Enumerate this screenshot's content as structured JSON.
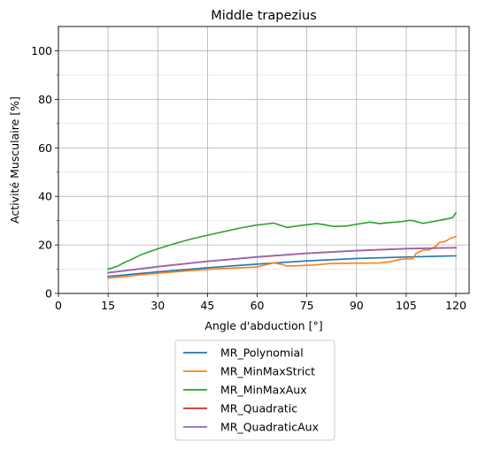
{
  "chart_data": {
    "type": "line",
    "title": "Middle trapezius",
    "xlabel": "Angle d'abduction [°]",
    "ylabel": "Activité Musculaire [%]",
    "xlim": [
      0,
      124
    ],
    "ylim": [
      0,
      110
    ],
    "xticks": [
      0,
      15,
      30,
      45,
      60,
      75,
      90,
      105,
      120
    ],
    "yticks": [
      0,
      20,
      40,
      60,
      80,
      100
    ],
    "yminor_ticks": [
      10,
      30,
      50,
      70,
      90
    ],
    "grid": true,
    "legend_position": "below",
    "series": [
      {
        "name": "MR_Polynomial",
        "color": "#1f77b4",
        "x": [
          15,
          30,
          45,
          60,
          75,
          90,
          105,
          120
        ],
        "y": [
          7.0,
          8.9,
          10.6,
          12.1,
          13.4,
          14.4,
          15.0,
          15.5
        ]
      },
      {
        "name": "MR_MinMaxStrict",
        "color": "#ff7f0e",
        "x": [
          15,
          20,
          25,
          30,
          35,
          40,
          45,
          50,
          55,
          60,
          62,
          65,
          67,
          69,
          72,
          75,
          78,
          82,
          86,
          90,
          93,
          97,
          100,
          103,
          105,
          107,
          108,
          110,
          112,
          114,
          115,
          117,
          118,
          120
        ],
        "y": [
          6.3,
          7.0,
          7.7,
          8.3,
          8.9,
          9.4,
          9.9,
          10.3,
          10.6,
          10.9,
          11.6,
          12.6,
          12.1,
          11.3,
          11.4,
          11.6,
          11.8,
          12.3,
          12.4,
          12.5,
          12.5,
          12.6,
          13.0,
          14.0,
          14.2,
          14.3,
          16.5,
          17.8,
          18.0,
          19.5,
          21.0,
          21.5,
          22.5,
          23.5
        ]
      },
      {
        "name": "MR_MinMaxAux",
        "color": "#2ca02c",
        "x": [
          15,
          16,
          18,
          20,
          22,
          25,
          30,
          35,
          40,
          45,
          50,
          55,
          60,
          62,
          65,
          67,
          69,
          72,
          75,
          78,
          80,
          83,
          87,
          90,
          94,
          97,
          100,
          103,
          106,
          107,
          110,
          113,
          116,
          119,
          120
        ],
        "y": [
          10.0,
          10.4,
          11.3,
          12.8,
          14.0,
          16.0,
          18.4,
          20.5,
          22.4,
          24.0,
          25.5,
          27.0,
          28.2,
          28.5,
          29.0,
          28.1,
          27.2,
          27.8,
          28.3,
          28.8,
          28.4,
          27.6,
          27.8,
          28.5,
          29.4,
          28.8,
          29.2,
          29.5,
          30.1,
          30.0,
          28.9,
          29.6,
          30.4,
          31.2,
          33.2
        ]
      },
      {
        "name": "MR_Quadratic",
        "color": "#d62728",
        "x": [
          15,
          30,
          45,
          60,
          75,
          90,
          105,
          120
        ],
        "y": [
          8.5,
          11.0,
          13.2,
          15.0,
          16.5,
          17.6,
          18.4,
          18.8
        ]
      },
      {
        "name": "MR_QuadraticAux",
        "color": "#9467bd",
        "x": [
          15,
          30,
          45,
          60,
          75,
          90,
          105,
          120
        ],
        "y": [
          8.6,
          11.1,
          13.3,
          15.1,
          16.6,
          17.7,
          18.5,
          18.9
        ]
      }
    ]
  }
}
